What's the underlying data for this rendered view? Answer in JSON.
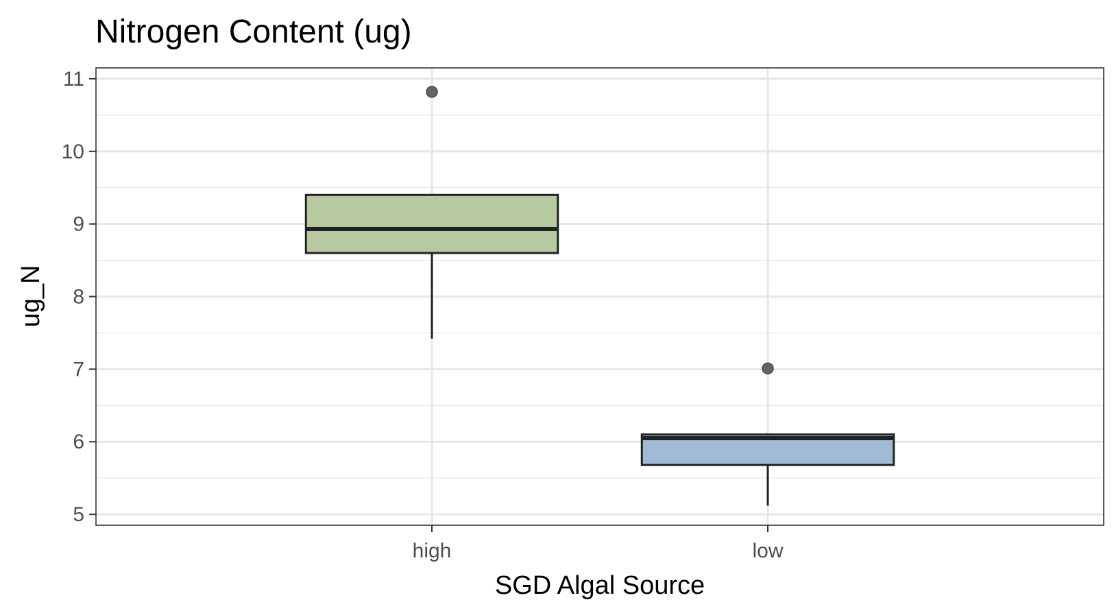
{
  "chart_data": {
    "type": "boxplot",
    "title": "Nitrogen Content (ug)",
    "xlabel": "SGD Algal Source",
    "ylabel": "ug_N",
    "categories": [
      "high",
      "low"
    ],
    "ylim": [
      4.85,
      11.15
    ],
    "yticks": [
      5,
      6,
      7,
      8,
      9,
      10,
      11
    ],
    "grid": true,
    "boxes": [
      {
        "category": "high",
        "whisker_low": 7.42,
        "q1": 8.6,
        "median": 8.93,
        "q3": 9.4,
        "whisker_high": 9.4,
        "outliers": [
          10.82
        ],
        "color": "#b7c9a0"
      },
      {
        "category": "low",
        "whisker_low": 5.12,
        "q1": 5.68,
        "median": 6.05,
        "q3": 6.1,
        "whisker_high": 6.1,
        "outliers": [
          7.01
        ],
        "color": "#a2bbd5"
      }
    ]
  }
}
